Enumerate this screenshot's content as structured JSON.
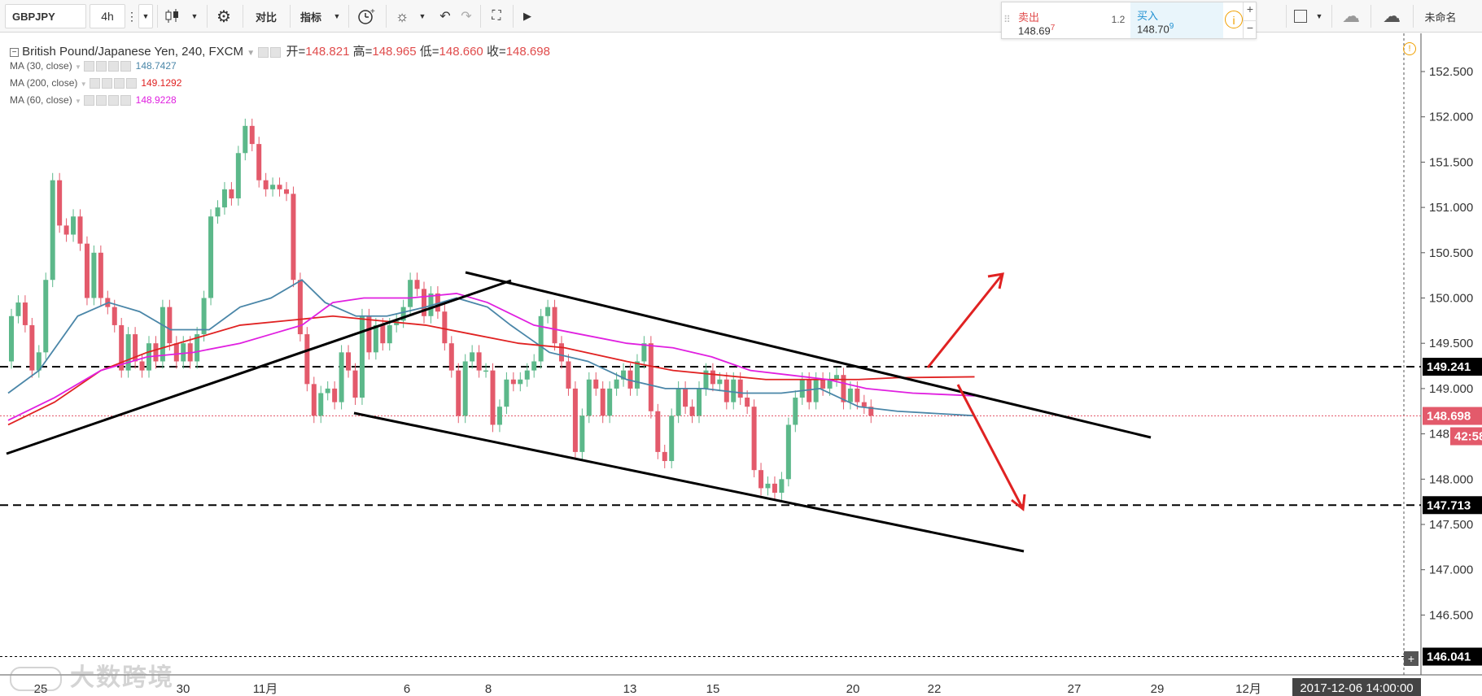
{
  "toolbar": {
    "symbol": "GBPJPY",
    "interval": "4h",
    "compare": "对比",
    "indicators": "指标",
    "user": "未命名"
  },
  "trade": {
    "sell_label": "卖出",
    "sell_price": "148.69",
    "sell_sup": "7",
    "spread": "1.2",
    "buy_label": "买入",
    "buy_price": "148.70",
    "buy_sup": "9"
  },
  "legend": {
    "title": "British Pound/Japanese Yen, 240, FXCM",
    "open_k": "开=",
    "open": "148.821",
    "high_k": "高=",
    "high": "148.965",
    "low_k": "低=",
    "low": "148.660",
    "close_k": "收=",
    "close": "148.698",
    "ma30_label": "MA (30, close)",
    "ma30_value": "148.7427",
    "ma200_label": "MA (200, close)",
    "ma200_value": "149.1292",
    "ma60_label": "MA (60, close)",
    "ma60_value": "148.9228"
  },
  "colors": {
    "up": "#5cb88a",
    "down": "#e35a6b",
    "ma30": "#4a86a8",
    "ma200": "#e02222",
    "ma60": "#e020e0",
    "arrow": "#e02222"
  },
  "price_axis": {
    "ticks": [
      "152.500",
      "152.000",
      "151.500",
      "151.000",
      "150.500",
      "150.000",
      "149.500",
      "149.000",
      "148.500",
      "148.000",
      "147.500",
      "147.000",
      "146.500"
    ],
    "tags": [
      {
        "text": "149.241",
        "bg": "#000000"
      },
      {
        "text": "148.698",
        "bg": "#e35a6b"
      },
      {
        "text": "42:58",
        "bg": "#e35a6b"
      },
      {
        "text": "147.713",
        "bg": "#000000"
      },
      {
        "text": "146.041",
        "bg": "#000000"
      }
    ]
  },
  "time_axis": {
    "labels": [
      "25",
      "30",
      "11月",
      "6",
      "8",
      "13",
      "15",
      "20",
      "22",
      "27",
      "29",
      "12月"
    ],
    "cursor": "2017-12-06 14:00:00"
  },
  "watermark": "大数跨境",
  "chart_data": {
    "type": "candlestick",
    "symbol": "GBPJPY",
    "timeframe": "240",
    "ylim": [
      146.0,
      152.8
    ],
    "candles": [
      [
        149.3,
        149.8
      ],
      [
        149.8,
        149.95
      ],
      [
        149.95,
        149.7
      ],
      [
        149.7,
        149.2
      ],
      [
        149.2,
        149.4
      ],
      [
        149.4,
        150.2
      ],
      [
        150.2,
        151.3
      ],
      [
        151.3,
        150.8
      ],
      [
        150.8,
        150.7
      ],
      [
        150.7,
        150.9
      ],
      [
        150.9,
        150.6
      ],
      [
        150.6,
        150.0
      ],
      [
        150.0,
        150.5
      ],
      [
        150.5,
        150.0
      ],
      [
        150.0,
        149.9
      ],
      [
        149.9,
        149.7
      ],
      [
        149.7,
        149.2
      ],
      [
        149.2,
        149.6
      ],
      [
        149.6,
        149.3
      ],
      [
        149.3,
        149.2
      ],
      [
        149.2,
        149.5
      ],
      [
        149.5,
        149.3
      ],
      [
        149.3,
        149.9
      ],
      [
        149.9,
        149.5
      ],
      [
        149.5,
        149.3
      ],
      [
        149.3,
        149.5
      ],
      [
        149.5,
        149.3
      ],
      [
        149.3,
        149.6
      ],
      [
        149.6,
        150.0
      ],
      [
        150.0,
        150.9
      ],
      [
        150.9,
        151.0
      ],
      [
        151.0,
        151.2
      ],
      [
        151.2,
        151.1
      ],
      [
        151.1,
        151.6
      ],
      [
        151.6,
        151.9
      ],
      [
        151.9,
        151.7
      ],
      [
        151.7,
        151.3
      ],
      [
        151.3,
        151.2
      ],
      [
        151.2,
        151.25
      ],
      [
        151.25,
        151.2
      ],
      [
        151.2,
        151.15
      ],
      [
        151.15,
        150.2
      ],
      [
        150.2,
        149.6
      ],
      [
        149.6,
        149.05
      ],
      [
        149.05,
        148.7
      ],
      [
        148.7,
        148.95
      ],
      [
        148.95,
        149.0
      ],
      [
        149.0,
        148.85
      ],
      [
        148.85,
        149.4
      ],
      [
        149.4,
        149.2
      ],
      [
        149.2,
        148.9
      ],
      [
        148.9,
        149.8
      ],
      [
        149.8,
        149.4
      ],
      [
        149.4,
        149.7
      ],
      [
        149.7,
        149.5
      ],
      [
        149.5,
        149.7
      ],
      [
        149.7,
        149.75
      ],
      [
        149.75,
        149.9
      ],
      [
        149.9,
        150.2
      ],
      [
        150.2,
        150.1
      ],
      [
        150.1,
        149.8
      ],
      [
        149.8,
        150.05
      ],
      [
        150.05,
        149.85
      ],
      [
        149.85,
        149.5
      ],
      [
        149.5,
        149.2
      ],
      [
        149.2,
        148.7
      ],
      [
        148.7,
        149.3
      ],
      [
        149.3,
        149.4
      ],
      [
        149.4,
        149.2
      ],
      [
        149.2,
        149.2
      ],
      [
        149.2,
        148.6
      ],
      [
        148.6,
        148.8
      ],
      [
        148.8,
        149.1
      ],
      [
        149.1,
        149.05
      ],
      [
        149.05,
        149.1
      ],
      [
        149.1,
        149.2
      ],
      [
        149.2,
        149.3
      ],
      [
        149.3,
        149.8
      ],
      [
        149.8,
        149.9
      ],
      [
        149.9,
        149.5
      ],
      [
        149.5,
        149.3
      ],
      [
        149.3,
        149.0
      ],
      [
        149.0,
        148.3
      ],
      [
        148.3,
        148.7
      ],
      [
        148.7,
        149.1
      ],
      [
        149.1,
        149.0
      ],
      [
        149.0,
        148.7
      ],
      [
        148.7,
        149.0
      ],
      [
        149.0,
        149.1
      ],
      [
        149.1,
        149.2
      ],
      [
        149.2,
        149.0
      ],
      [
        149.0,
        149.3
      ],
      [
        149.3,
        149.5
      ],
      [
        149.5,
        148.75
      ],
      [
        148.75,
        148.3
      ],
      [
        148.3,
        148.2
      ],
      [
        148.2,
        148.7
      ],
      [
        148.7,
        149.0
      ],
      [
        149.0,
        148.8
      ],
      [
        148.8,
        148.7
      ],
      [
        148.7,
        149.0
      ],
      [
        149.0,
        149.2
      ],
      [
        149.2,
        149.05
      ],
      [
        149.05,
        149.1
      ],
      [
        149.1,
        148.85
      ],
      [
        148.85,
        149.1
      ],
      [
        149.1,
        148.9
      ],
      [
        148.9,
        148.8
      ],
      [
        148.8,
        148.1
      ],
      [
        148.1,
        147.9
      ],
      [
        147.9,
        147.95
      ],
      [
        147.95,
        147.85
      ],
      [
        147.85,
        148.0
      ],
      [
        148.0,
        148.6
      ],
      [
        148.6,
        148.9
      ],
      [
        148.9,
        149.1
      ],
      [
        149.1,
        148.85
      ],
      [
        148.85,
        149.1
      ],
      [
        149.1,
        149.0
      ],
      [
        149.0,
        149.1
      ],
      [
        149.1,
        149.15
      ],
      [
        149.15,
        148.85
      ],
      [
        148.85,
        149.0
      ],
      [
        149.0,
        148.85
      ],
      [
        148.85,
        148.8
      ],
      [
        148.8,
        148.7
      ]
    ],
    "ma30": [
      [
        0,
        148.95
      ],
      [
        40,
        149.2
      ],
      [
        90,
        149.8
      ],
      [
        130,
        149.95
      ],
      [
        170,
        149.85
      ],
      [
        210,
        149.65
      ],
      [
        260,
        149.65
      ],
      [
        300,
        149.9
      ],
      [
        340,
        150.0
      ],
      [
        380,
        150.2
      ],
      [
        410,
        149.95
      ],
      [
        450,
        149.8
      ],
      [
        490,
        149.8
      ],
      [
        540,
        149.9
      ],
      [
        580,
        150.0
      ],
      [
        620,
        149.9
      ],
      [
        650,
        149.7
      ],
      [
        700,
        149.4
      ],
      [
        750,
        149.3
      ],
      [
        800,
        149.1
      ],
      [
        850,
        149.0
      ],
      [
        900,
        149.0
      ],
      [
        950,
        148.95
      ],
      [
        1000,
        148.95
      ],
      [
        1050,
        149.0
      ],
      [
        1100,
        148.8
      ],
      [
        1150,
        148.75
      ],
      [
        1250,
        148.7
      ]
    ],
    "ma200": [
      [
        0,
        148.6
      ],
      [
        60,
        148.85
      ],
      [
        120,
        149.2
      ],
      [
        180,
        149.4
      ],
      [
        240,
        149.55
      ],
      [
        300,
        149.7
      ],
      [
        360,
        149.75
      ],
      [
        420,
        149.8
      ],
      [
        480,
        149.75
      ],
      [
        540,
        149.7
      ],
      [
        600,
        149.6
      ],
      [
        660,
        149.5
      ],
      [
        720,
        149.45
      ],
      [
        800,
        149.3
      ],
      [
        860,
        149.2
      ],
      [
        920,
        149.15
      ],
      [
        980,
        149.1
      ],
      [
        1040,
        149.1
      ],
      [
        1100,
        149.1
      ],
      [
        1150,
        149.12
      ],
      [
        1250,
        149.13
      ]
    ],
    "ma60": [
      [
        0,
        148.65
      ],
      [
        60,
        148.9
      ],
      [
        120,
        149.2
      ],
      [
        180,
        149.35
      ],
      [
        240,
        149.4
      ],
      [
        300,
        149.5
      ],
      [
        340,
        149.6
      ],
      [
        380,
        149.7
      ],
      [
        420,
        149.95
      ],
      [
        460,
        150.0
      ],
      [
        520,
        150.0
      ],
      [
        580,
        150.05
      ],
      [
        620,
        149.95
      ],
      [
        680,
        149.7
      ],
      [
        740,
        149.6
      ],
      [
        800,
        149.5
      ],
      [
        860,
        149.45
      ],
      [
        910,
        149.35
      ],
      [
        960,
        149.2
      ],
      [
        1010,
        149.15
      ],
      [
        1060,
        149.1
      ],
      [
        1110,
        149.0
      ],
      [
        1170,
        148.95
      ],
      [
        1250,
        148.92
      ]
    ],
    "levels": [
      149.241,
      148.698,
      147.713,
      146.041
    ]
  }
}
